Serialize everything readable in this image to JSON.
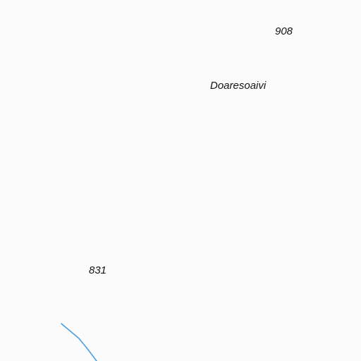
{
  "map": {
    "labels": {
      "elevation_top": "908",
      "place_name": "Doaresoaivi",
      "elevation_bottom": "831"
    },
    "colors": {
      "background": "#fbfbfb",
      "water": "#4a9ee0",
      "label_text": "#141414"
    }
  }
}
